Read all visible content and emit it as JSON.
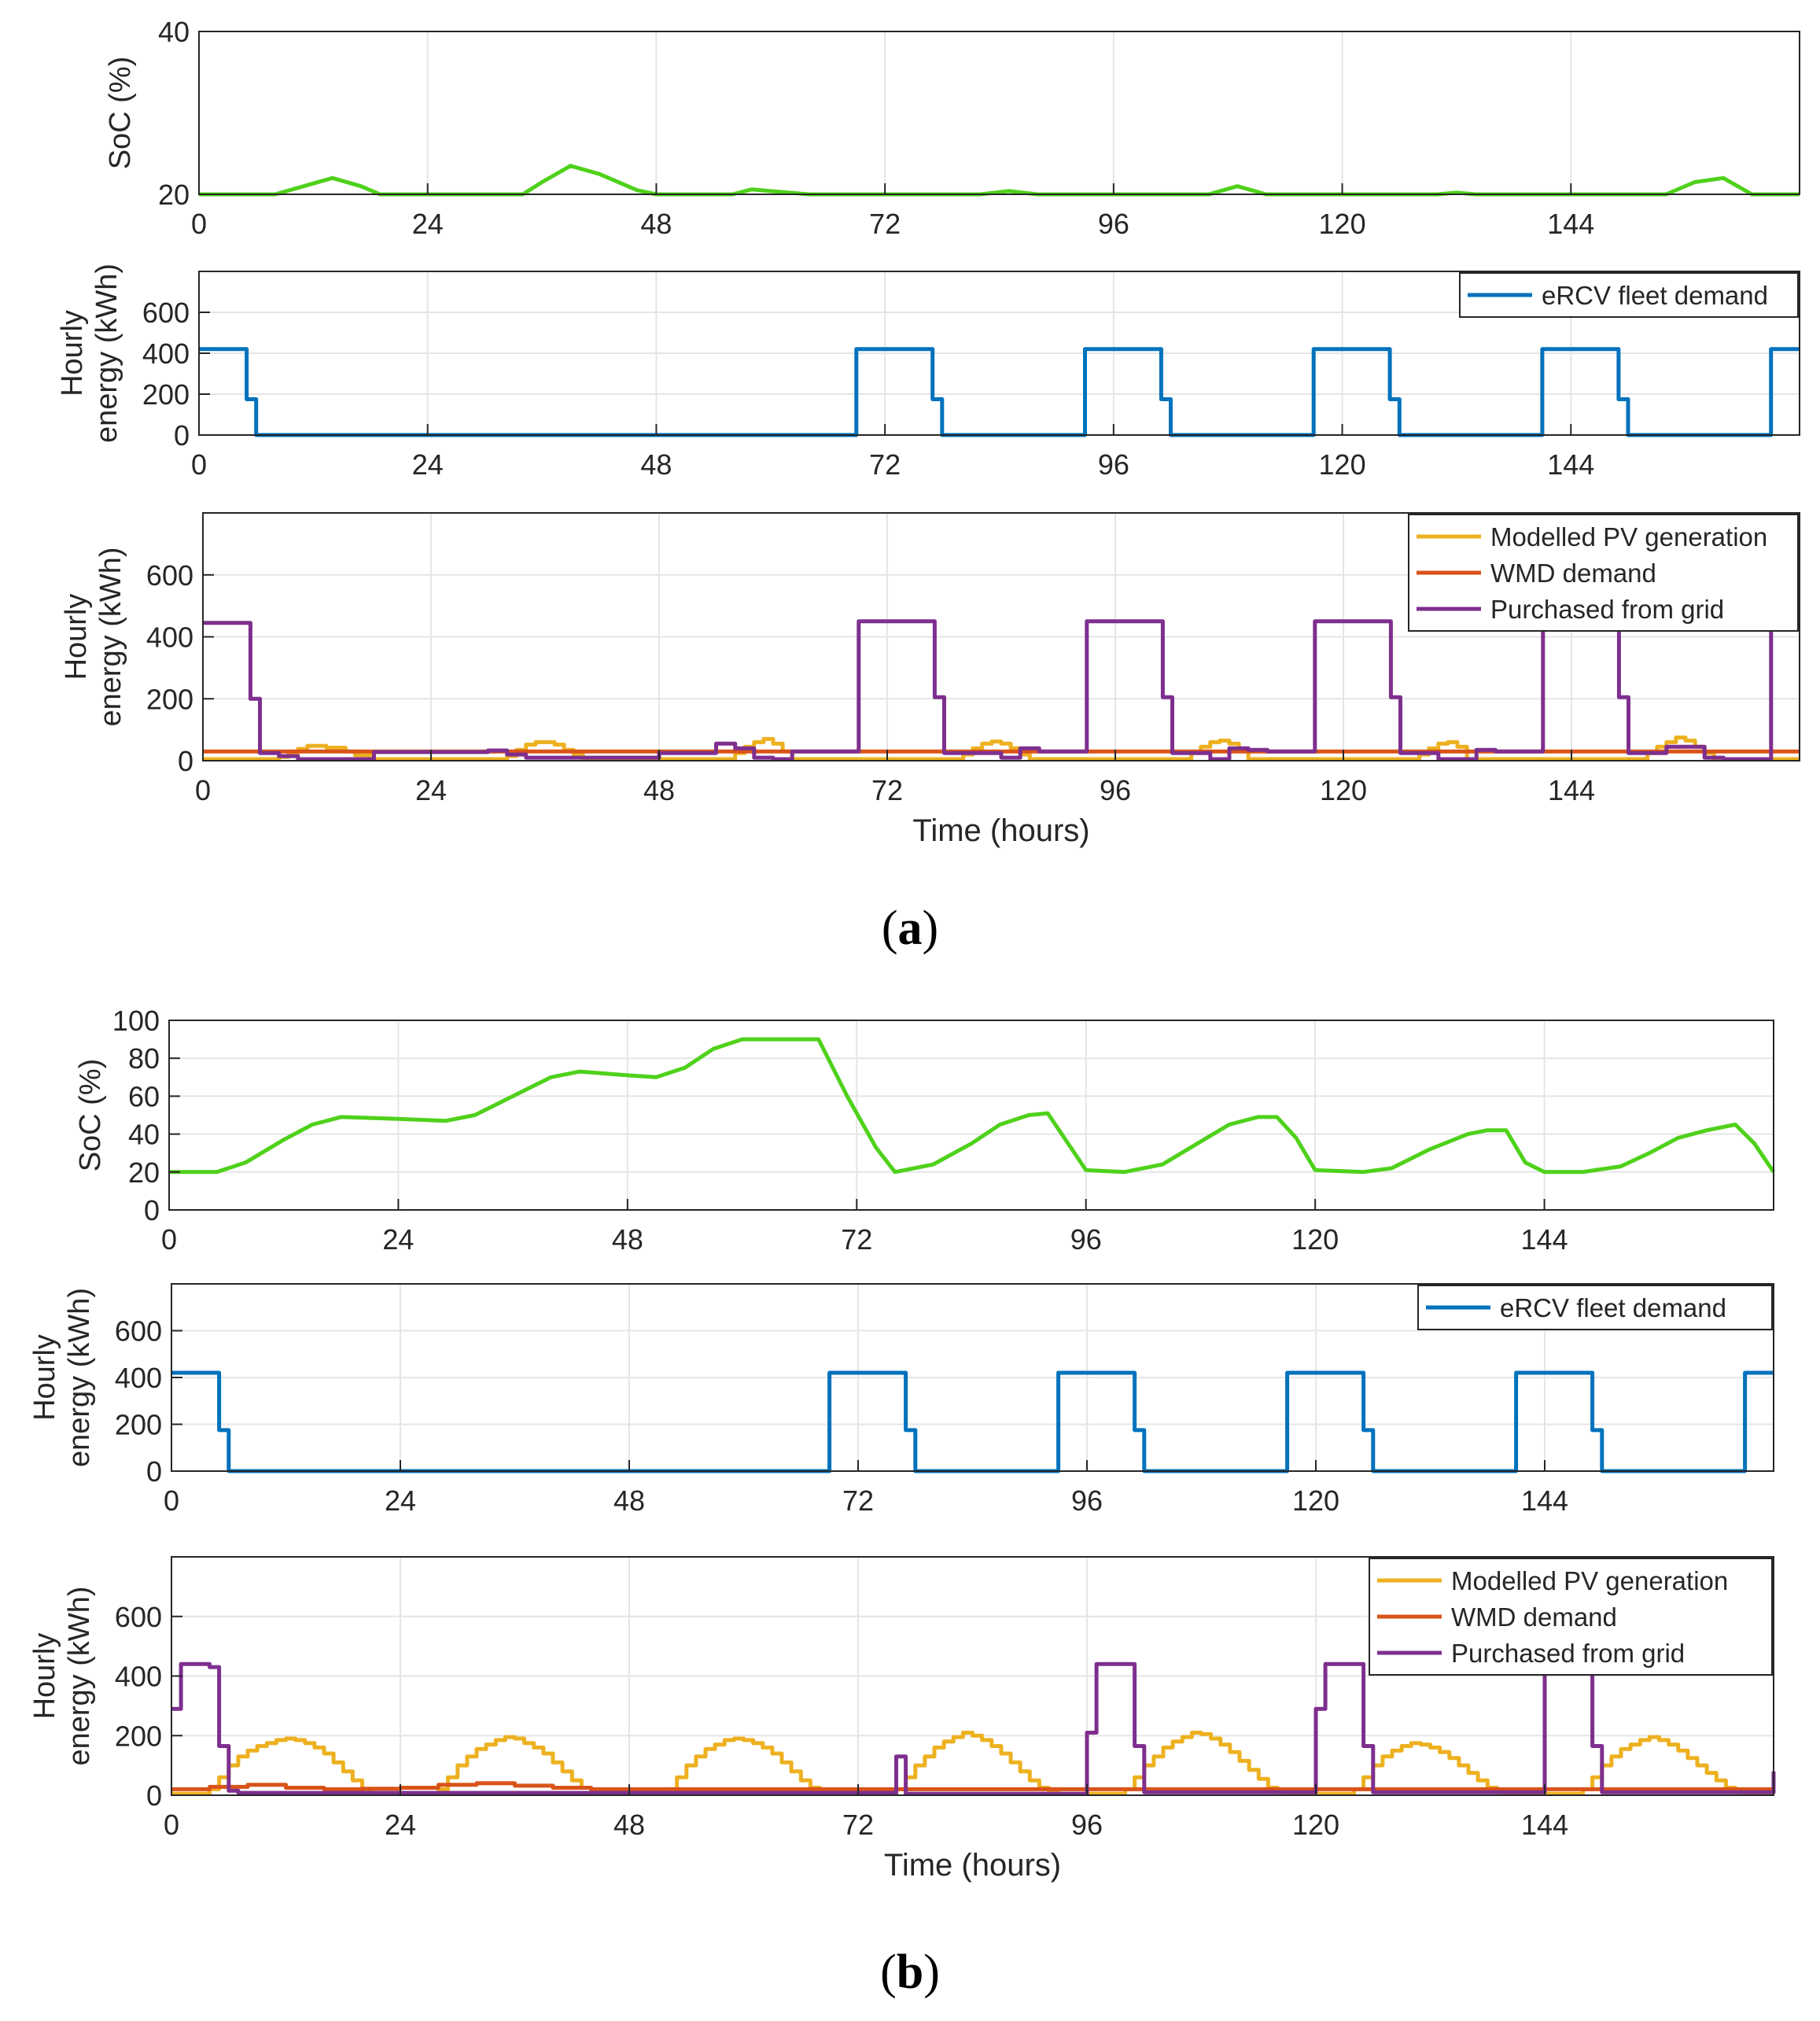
{
  "colors": {
    "soc": "#4fd11b",
    "ercv": "#0072bd",
    "pv": "#edb120",
    "wmd": "#d95319",
    "grid": "#7e2f8e",
    "axis": "#262626",
    "gridline": "#e5e5e5"
  },
  "captions": [
    "a",
    "b"
  ],
  "chart_data": [
    {
      "type": "line",
      "panel": "a",
      "ylabel": "SoC (%)",
      "xlim": [
        0,
        168
      ],
      "ylim": [
        20,
        40
      ],
      "yticks": [
        20,
        40
      ],
      "xticks": [
        0,
        24,
        48,
        72,
        96,
        120,
        144
      ],
      "grid": true,
      "series": [
        {
          "color_key": "soc",
          "x": [
            0,
            8,
            11,
            14,
            17,
            19,
            24,
            34,
            36,
            39,
            42,
            46,
            48,
            56,
            58,
            60,
            64,
            82,
            85,
            88,
            106,
            109,
            112,
            130,
            132,
            134,
            154,
            157,
            160,
            163,
            168
          ],
          "y": [
            20,
            20,
            21,
            22,
            21,
            20,
            20,
            20,
            21.5,
            23.5,
            22.5,
            20.5,
            20,
            20,
            20.6,
            20.4,
            20,
            20,
            20.4,
            20,
            20,
            21,
            20,
            20,
            20.2,
            20,
            20,
            21.5,
            22,
            20,
            20
          ]
        }
      ]
    },
    {
      "type": "line",
      "panel": "a",
      "ylabel": "Hourly energy (kWh)",
      "xlim": [
        0,
        168
      ],
      "ylim": [
        0,
        800
      ],
      "yticks": [
        0,
        200,
        400,
        600
      ],
      "xticks": [
        0,
        24,
        48,
        72,
        96,
        120,
        144
      ],
      "grid": true,
      "legend_position": "top-right",
      "series": [
        {
          "name": "eRCV fleet demand",
          "color_key": "ercv",
          "step": true,
          "x": [
            0,
            5,
            6,
            69,
            77,
            78,
            93,
            101,
            102,
            117,
            125,
            126,
            141,
            149,
            150,
            165,
            168
          ],
          "y": [
            420,
            175,
            0,
            420,
            175,
            0,
            420,
            175,
            0,
            420,
            175,
            0,
            420,
            175,
            0,
            420,
            420
          ]
        }
      ]
    },
    {
      "type": "line",
      "panel": "a",
      "xlabel": "Time (hours)",
      "ylabel": "Hourly energy (kWh)",
      "xlim": [
        0,
        168
      ],
      "ylim": [
        0,
        800
      ],
      "yticks": [
        0,
        200,
        400,
        600
      ],
      "xticks": [
        0,
        24,
        48,
        72,
        96,
        120,
        144
      ],
      "grid": true,
      "legend_position": "top-right",
      "series": [
        {
          "name": "Modelled PV generation",
          "color_key": "pv",
          "step": true,
          "x": [
            0,
            8,
            9,
            10,
            11,
            13,
            15,
            16,
            18,
            32,
            33,
            34,
            35,
            37,
            38,
            39,
            40,
            56,
            57,
            58,
            59,
            60,
            61,
            62,
            80,
            81,
            82,
            83,
            84,
            85,
            86,
            87,
            104,
            105,
            106,
            107,
            108,
            109,
            110,
            128,
            129,
            130,
            131,
            132,
            133,
            152,
            153,
            154,
            155,
            156,
            157,
            158,
            159,
            168
          ],
          "y": [
            5,
            12,
            25,
            38,
            48,
            42,
            30,
            18,
            5,
            15,
            35,
            52,
            60,
            52,
            35,
            18,
            5,
            25,
            45,
            60,
            70,
            55,
            30,
            5,
            20,
            40,
            55,
            62,
            55,
            40,
            20,
            5,
            25,
            45,
            60,
            65,
            55,
            35,
            5,
            20,
            40,
            55,
            60,
            45,
            5,
            25,
            45,
            60,
            75,
            65,
            45,
            25,
            5,
            5
          ]
        },
        {
          "name": "WMD demand",
          "color_key": "wmd",
          "step": true,
          "x": [
            0,
            168
          ],
          "y": [
            30,
            30
          ]
        },
        {
          "name": "Purchased from grid",
          "color_key": "grid",
          "step": true,
          "x": [
            0,
            5,
            6,
            8,
            10,
            18,
            20,
            30,
            32,
            34,
            48,
            54,
            56,
            58,
            60,
            62,
            64,
            69,
            77,
            78,
            84,
            86,
            88,
            93,
            101,
            102,
            106,
            108,
            110,
            112,
            117,
            125,
            126,
            130,
            134,
            136,
            141,
            149,
            150,
            154,
            158,
            160,
            165,
            168
          ],
          "y": [
            445,
            200,
            25,
            15,
            5,
            28,
            28,
            33,
            20,
            10,
            25,
            55,
            40,
            10,
            5,
            30,
            30,
            450,
            205,
            25,
            10,
            40,
            30,
            450,
            205,
            25,
            5,
            40,
            35,
            30,
            450,
            205,
            25,
            5,
            35,
            30,
            450,
            205,
            25,
            45,
            10,
            5,
            450,
            450
          ]
        }
      ]
    },
    {
      "type": "line",
      "panel": "b",
      "ylabel": "SoC (%)",
      "xlim": [
        0,
        168
      ],
      "ylim": [
        0,
        100
      ],
      "yticks": [
        0,
        20,
        40,
        60,
        80,
        100
      ],
      "xticks": [
        0,
        24,
        48,
        72,
        96,
        120,
        144
      ],
      "grid": true,
      "series": [
        {
          "color_key": "soc",
          "x": [
            0,
            5,
            8,
            12,
            15,
            18,
            24,
            29,
            32,
            36,
            40,
            43,
            48,
            51,
            54,
            57,
            60,
            68,
            71,
            74,
            76,
            80,
            84,
            87,
            90,
            92,
            94,
            96,
            100,
            104,
            108,
            111,
            114,
            116,
            118,
            120,
            125,
            128,
            132,
            136,
            138,
            140,
            142,
            144,
            148,
            152,
            155,
            158,
            161,
            164,
            166,
            168
          ],
          "y": [
            20,
            20,
            25,
            37,
            45,
            49,
            48,
            47,
            50,
            60,
            70,
            73,
            71,
            70,
            75,
            85,
            90,
            90,
            60,
            33,
            20,
            24,
            35,
            45,
            50,
            51,
            36,
            21,
            20,
            24,
            36,
            45,
            49,
            49,
            38,
            21,
            20,
            22,
            32,
            40,
            42,
            42,
            25,
            20,
            20,
            23,
            30,
            38,
            42,
            45,
            35,
            20
          ]
        }
      ]
    },
    {
      "type": "line",
      "panel": "b",
      "ylabel": "Hourly energy (kWh)",
      "xlim": [
        0,
        168
      ],
      "ylim": [
        0,
        800
      ],
      "yticks": [
        0,
        200,
        400,
        600
      ],
      "xticks": [
        0,
        24,
        48,
        72,
        96,
        120,
        144
      ],
      "grid": true,
      "legend_position": "top-right",
      "series": [
        {
          "name": "eRCV fleet demand",
          "color_key": "ercv",
          "step": true,
          "x": [
            0,
            5,
            6,
            69,
            77,
            78,
            93,
            101,
            102,
            117,
            125,
            126,
            141,
            149,
            150,
            165,
            168
          ],
          "y": [
            420,
            175,
            0,
            420,
            175,
            0,
            420,
            175,
            0,
            420,
            175,
            0,
            420,
            175,
            0,
            420,
            420
          ]
        }
      ]
    },
    {
      "type": "line",
      "panel": "b",
      "xlabel": "Time (hours)",
      "ylabel": "Hourly energy (kWh)",
      "xlim": [
        0,
        168
      ],
      "ylim": [
        0,
        800
      ],
      "yticks": [
        0,
        200,
        400,
        600
      ],
      "xticks": [
        0,
        24,
        48,
        72,
        96,
        120,
        144
      ],
      "grid": true,
      "legend_position": "top-right",
      "series": [
        {
          "name": "Modelled PV generation",
          "color_key": "pv",
          "step": true,
          "x": [
            0,
            4,
            5,
            6,
            7,
            8,
            9,
            10,
            11,
            12,
            13,
            14,
            15,
            16,
            17,
            18,
            19,
            20,
            21,
            28,
            29,
            30,
            31,
            32,
            33,
            34,
            35,
            36,
            37,
            38,
            39,
            40,
            41,
            42,
            43,
            44,
            45,
            52,
            53,
            54,
            55,
            56,
            57,
            58,
            59,
            60,
            61,
            62,
            63,
            64,
            65,
            66,
            67,
            68,
            69,
            76,
            77,
            78,
            79,
            80,
            81,
            82,
            83,
            84,
            85,
            86,
            87,
            88,
            89,
            90,
            91,
            92,
            93,
            100,
            101,
            102,
            103,
            104,
            105,
            106,
            107,
            108,
            109,
            110,
            111,
            112,
            113,
            114,
            115,
            116,
            117,
            124,
            125,
            126,
            127,
            128,
            129,
            130,
            131,
            132,
            133,
            134,
            135,
            136,
            137,
            138,
            139,
            140,
            141,
            148,
            149,
            150,
            151,
            152,
            153,
            154,
            155,
            156,
            157,
            158,
            159,
            160,
            161,
            162,
            163,
            164,
            165,
            168
          ],
          "y": [
            5,
            20,
            60,
            100,
            130,
            150,
            165,
            175,
            185,
            190,
            185,
            175,
            160,
            140,
            110,
            80,
            50,
            20,
            5,
            20,
            60,
            100,
            130,
            155,
            170,
            185,
            195,
            190,
            175,
            160,
            140,
            110,
            80,
            50,
            25,
            10,
            5,
            20,
            60,
            100,
            130,
            155,
            170,
            185,
            190,
            185,
            175,
            160,
            140,
            110,
            80,
            50,
            25,
            10,
            5,
            20,
            60,
            100,
            130,
            160,
            180,
            195,
            210,
            200,
            185,
            165,
            140,
            110,
            80,
            50,
            25,
            10,
            5,
            20,
            60,
            100,
            130,
            160,
            180,
            195,
            210,
            205,
            190,
            170,
            145,
            115,
            85,
            55,
            25,
            10,
            5,
            20,
            60,
            100,
            130,
            150,
            165,
            175,
            170,
            160,
            145,
            125,
            100,
            75,
            50,
            25,
            10,
            5,
            5,
            20,
            60,
            100,
            130,
            155,
            170,
            185,
            195,
            185,
            170,
            150,
            125,
            100,
            75,
            50,
            25,
            10,
            5,
            5
          ]
        },
        {
          "name": "WMD demand",
          "color_key": "wmd",
          "step": true,
          "x": [
            0,
            4,
            8,
            12,
            16,
            20,
            24,
            28,
            32,
            36,
            40,
            44,
            48,
            168
          ],
          "y": [
            20,
            28,
            35,
            25,
            20,
            22,
            25,
            35,
            40,
            32,
            25,
            20,
            20,
            20
          ]
        },
        {
          "name": "Purchased from grid",
          "color_key": "grid",
          "step": true,
          "x": [
            0,
            1,
            4,
            5,
            6,
            7,
            76,
            77,
            78,
            95,
            96,
            97,
            101,
            102,
            119,
            120,
            121,
            125,
            126,
            143,
            144,
            149,
            150,
            167,
            168
          ],
          "y": [
            290,
            440,
            430,
            165,
            15,
            8,
            130,
            5,
            5,
            5,
            210,
            440,
            165,
            10,
            10,
            290,
            440,
            165,
            10,
            10,
            450,
            165,
            10,
            10,
            80
          ]
        }
      ]
    }
  ]
}
